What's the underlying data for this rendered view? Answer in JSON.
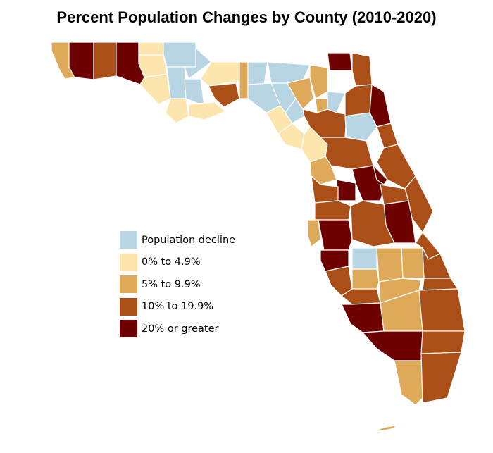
{
  "title": "Percent Population Changes by County (2010-2020)",
  "colors": {
    "decline": "#b7d5e2",
    "low": "#fce6ae",
    "mid": "#dfa95a",
    "high": "#aa4f17",
    "top": "#6d0000",
    "border": "#ffffff"
  },
  "legend": [
    {
      "key": "decline",
      "label": "Population decline"
    },
    {
      "key": "low",
      "label": "0% to 4.9%"
    },
    {
      "key": "mid",
      "label": "5% to 9.9%"
    },
    {
      "key": "high",
      "label": "10% to 19.9%"
    },
    {
      "key": "top",
      "label": "20% or greater"
    }
  ]
}
